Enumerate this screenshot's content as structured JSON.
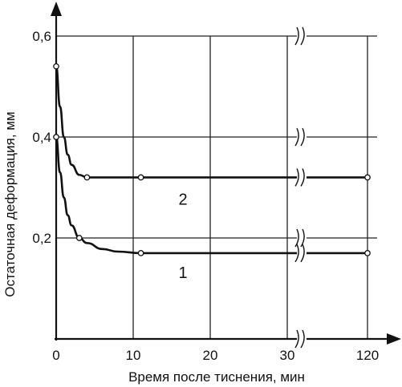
{
  "chart_data": {
    "type": "line",
    "xlabel": "Время после тиснения, мин",
    "ylabel": "Остаточная деформация, мм",
    "ylim": [
      0,
      0.6
    ],
    "x_ticks": [
      "0",
      "10",
      "20",
      "30",
      "120"
    ],
    "y_ticks": [
      "0,2",
      "0,4",
      "0,6"
    ],
    "x_axis_break": "between 30 and 120",
    "grid": true,
    "series": [
      {
        "name": "1",
        "x": [
          0,
          0.5,
          1,
          1.5,
          2,
          3,
          4,
          6,
          8,
          11,
          20,
          30,
          120
        ],
        "y": [
          0.4,
          0.33,
          0.28,
          0.245,
          0.225,
          0.2,
          0.19,
          0.178,
          0.173,
          0.17,
          0.17,
          0.17,
          0.17
        ],
        "markers": [
          0,
          3,
          11,
          120
        ]
      },
      {
        "name": "2",
        "x": [
          0,
          0.5,
          1,
          1.5,
          2,
          3,
          4,
          11,
          20,
          30,
          120
        ],
        "y": [
          0.54,
          0.46,
          0.4,
          0.365,
          0.345,
          0.325,
          0.32,
          0.32,
          0.32,
          0.32,
          0.32
        ],
        "markers": [
          0,
          4,
          11,
          120
        ]
      }
    ]
  }
}
